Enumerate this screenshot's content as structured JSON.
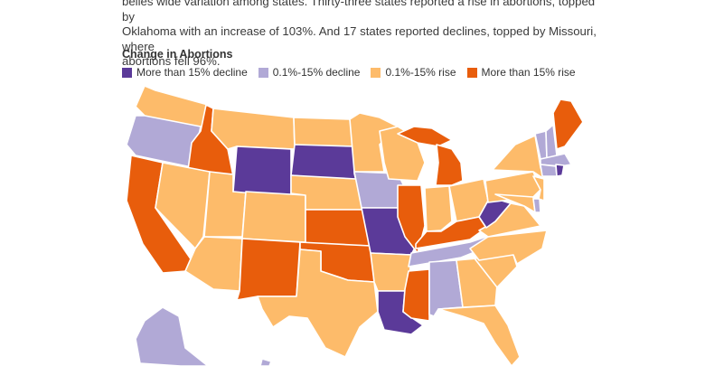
{
  "intro_lines": [
    "belies wide variation among states. Thirty-three states reported a rise in abortions, topped by",
    "Oklahoma with an increase of 103%. And 17 states reported declines, topped by Missouri, where",
    "abortions fell 96%."
  ],
  "legend": {
    "title": "Change in Abortions",
    "items": [
      {
        "key": "decline_big",
        "label": "More than 15% decline",
        "color": "#5b3a99"
      },
      {
        "key": "decline_small",
        "label": "0.1%-15% decline",
        "color": "#b1a9d6"
      },
      {
        "key": "rise_small",
        "label": "0.1%-15% rise",
        "color": "#fdbb6a"
      },
      {
        "key": "rise_big",
        "label": "More than 15% rise",
        "color": "#e85d0c"
      }
    ]
  },
  "states": {
    "WA": "rise_small",
    "OR": "decline_small",
    "CA": "rise_big",
    "ID": "rise_big",
    "NV": "rise_small",
    "UT": "rise_small",
    "AZ": "rise_small",
    "MT": "rise_small",
    "WY": "decline_big",
    "CO": "rise_small",
    "NM": "rise_big",
    "ND": "rise_small",
    "SD": "decline_big",
    "NE": "rise_small",
    "KS": "rise_big",
    "OK": "rise_big",
    "TX": "rise_small",
    "MN": "rise_small",
    "IA": "decline_small",
    "MO": "decline_big",
    "AR": "rise_small",
    "LA": "decline_big",
    "WI": "rise_small",
    "IL": "rise_big",
    "MS": "rise_big",
    "MI": "rise_big",
    "IN": "rise_small",
    "KY": "rise_big",
    "TN": "decline_small",
    "AL": "decline_small",
    "OH": "rise_small",
    "WV": "decline_big",
    "VA": "rise_small",
    "NC": "rise_small",
    "SC": "rise_small",
    "GA": "rise_small",
    "FL": "rise_small",
    "PA": "rise_small",
    "NY": "rise_small",
    "VT": "decline_small",
    "NH": "decline_small",
    "ME": "rise_big",
    "MA": "decline_small",
    "CT": "decline_small",
    "RI": "decline_big",
    "NJ": "rise_small",
    "DE": "decline_small",
    "MD": "rise_small",
    "AK": "decline_small",
    "HI": "decline_small"
  }
}
